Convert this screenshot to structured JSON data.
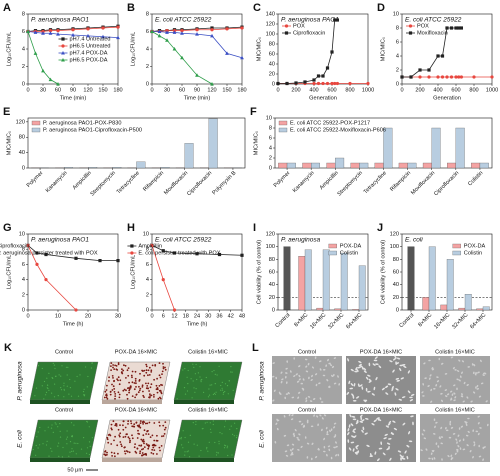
{
  "chart_data": [
    {
      "type": "line",
      "panel": "A",
      "title": "P. aeruginosa PAO1",
      "xlabel": "Time (min)",
      "ylabel": "Log₁₀CFU/mL",
      "x": [
        0,
        15,
        30,
        45,
        60,
        90,
        120,
        150,
        180
      ],
      "xlim": [
        0,
        180
      ],
      "xticks": [
        0,
        30,
        60,
        90,
        120,
        150,
        180
      ],
      "ylim": [
        0,
        8
      ],
      "yticks": [
        0,
        2,
        4,
        6,
        8
      ],
      "legend": "center right",
      "series": [
        {
          "name": "pH7.4 Untreated",
          "color": "#222222",
          "marker": "square",
          "values": [
            6,
            6.1,
            6.1,
            6.2,
            6.2,
            6.3,
            6.4,
            6.5,
            6.6
          ]
        },
        {
          "name": "pH6.5 Untreated",
          "color": "#e8473f",
          "marker": "circle",
          "values": [
            6,
            6,
            6,
            6.1,
            6.1,
            6.2,
            6.3,
            6.4,
            6.5
          ]
        },
        {
          "name": "pH7.4 POX-DA",
          "color": "#3b4fc4",
          "marker": "triangle",
          "values": [
            6,
            5.9,
            5.8,
            5.8,
            5.7,
            5.6,
            5.5,
            5.4,
            5.3
          ]
        },
        {
          "name": "pH6.5 POX-DA",
          "color": "#2e9e4a",
          "marker": "triangle",
          "values": [
            6,
            3.5,
            1.5,
            0.5,
            0,
            null,
            null,
            null,
            null
          ]
        }
      ]
    },
    {
      "type": "line",
      "panel": "B",
      "title": "E. coli ATCC 25922",
      "xlabel": "Time (min)",
      "ylabel": "Log₁₀CFU/mL",
      "x": [
        0,
        15,
        30,
        45,
        60,
        90,
        120,
        150,
        180
      ],
      "xlim": [
        0,
        180
      ],
      "xticks": [
        0,
        30,
        60,
        90,
        120,
        150,
        180
      ],
      "ylim": [
        0,
        8
      ],
      "yticks": [
        0,
        2,
        4,
        6,
        8
      ],
      "series": [
        {
          "color": "#222222",
          "marker": "square",
          "values": [
            6,
            6.1,
            6.1,
            6.2,
            6.2,
            6.3,
            6.4,
            6.4,
            6.5
          ]
        },
        {
          "color": "#e8473f",
          "marker": "circle",
          "values": [
            6,
            6,
            6.1,
            6.1,
            6.1,
            6.2,
            6.2,
            6.3,
            6.4
          ]
        },
        {
          "color": "#3b4fc4",
          "marker": "triangle",
          "values": [
            6,
            6,
            5.9,
            5.9,
            5.8,
            5.7,
            5.5,
            3.5,
            3
          ]
        },
        {
          "color": "#2e9e4a",
          "marker": "triangle",
          "values": [
            6,
            5.5,
            5,
            4,
            3,
            1,
            0,
            null,
            null
          ]
        }
      ]
    },
    {
      "type": "line",
      "panel": "C",
      "title": "P. aeruginosa PAO1",
      "xlabel": "Generation",
      "ylabel": "MIC/MIC₀",
      "x": [
        0,
        100,
        200,
        300,
        400,
        450,
        500,
        550,
        600,
        630,
        660,
        800,
        1000
      ],
      "xlim": [
        0,
        1000
      ],
      "xticks": [
        0,
        200,
        400,
        600,
        800,
        1000
      ],
      "ylim": [
        0,
        140
      ],
      "yticks": [
        0,
        20,
        40,
        60,
        80,
        100,
        120,
        140
      ],
      "legend": "upper left",
      "series": [
        {
          "name": "POX",
          "color": "#e8473f",
          "marker": "circle",
          "values": [
            1,
            1,
            1,
            1,
            1,
            1,
            1,
            1,
            1,
            1,
            1,
            1,
            1
          ]
        },
        {
          "name": "Ciprofloxacin",
          "color": "#222222",
          "marker": "square",
          "values": [
            1,
            1,
            2,
            4,
            8,
            16,
            16,
            32,
            64,
            128,
            128,
            null,
            null
          ]
        }
      ]
    },
    {
      "type": "line",
      "panel": "D",
      "title": "E. coli ATCC 25922",
      "xlabel": "Generation",
      "ylabel": "MIC/MIC₀",
      "x": [
        0,
        100,
        200,
        300,
        400,
        450,
        500,
        550,
        600,
        630,
        660,
        800,
        1000
      ],
      "xlim": [
        0,
        1000
      ],
      "xticks": [
        0,
        200,
        400,
        600,
        800,
        1000
      ],
      "ylim": [
        0,
        10
      ],
      "yticks": [
        0,
        2,
        4,
        6,
        8,
        10
      ],
      "legend": "upper left",
      "series": [
        {
          "name": "POX",
          "color": "#e8473f",
          "marker": "circle",
          "values": [
            1,
            1,
            1,
            1,
            1,
            1,
            1,
            1,
            1,
            1,
            1,
            1,
            1
          ]
        },
        {
          "name": "Moxifloxacin",
          "color": "#222222",
          "marker": "square",
          "values": [
            1,
            1,
            2,
            2,
            4,
            4,
            8,
            8,
            8,
            8,
            8,
            null,
            null
          ]
        }
      ]
    },
    {
      "type": "bar",
      "panel": "E",
      "ylabel": "MIC/MIC₀",
      "categories": [
        "Polymer",
        "Kanamycin",
        "Ampicillin",
        "Streptomycin",
        "Tetracycline",
        "Rifampicin",
        "Moxifloxacin",
        "Ciprofloxacin",
        "Polymyxin B"
      ],
      "ylim": [
        0,
        130
      ],
      "yticks": [
        0,
        40,
        80,
        120
      ],
      "legend": "upper left",
      "series": [
        {
          "name": "P. aeruginosa PAO1-POX-P830",
          "color": "#f4a3a3",
          "values": [
            1,
            1,
            1,
            1,
            1,
            1,
            1,
            1,
            1
          ]
        },
        {
          "name": "P. aeruginosa PAO1-Ciprofloxacin-P500",
          "color": "#b8cde0",
          "values": [
            1,
            2,
            2,
            2,
            16,
            2,
            64,
            128,
            1
          ]
        }
      ]
    },
    {
      "type": "bar",
      "panel": "F",
      "ylabel": "MIC/MIC₀",
      "categories": [
        "Polymer",
        "Kanamycin",
        "Ampicillin",
        "Streptomycin",
        "Tetracycline",
        "Rifampicin",
        "Moxifloxacin",
        "Ciprofloxacin",
        "Colistin"
      ],
      "ylim": [
        0,
        10
      ],
      "yticks": [
        0,
        2,
        4,
        6,
        8,
        10
      ],
      "legend": "upper left",
      "series": [
        {
          "name": "E. coli ATCC 25922-POX-P1217",
          "color": "#f4a3a3",
          "values": [
            1,
            1,
            1,
            1,
            1,
            1,
            1,
            1,
            1
          ]
        },
        {
          "name": "E. coli ATCC 25922-Moxifloxacin-P606",
          "color": "#b8cde0",
          "values": [
            1,
            1,
            2,
            1,
            8,
            1,
            8,
            8,
            1
          ]
        }
      ]
    },
    {
      "type": "line",
      "panel": "G",
      "title": "P. aeruginosa PAO1",
      "xlabel": "Time (h)",
      "ylabel": "Log₁₀CFU/mL",
      "x": [
        0,
        3,
        6,
        16,
        24,
        30
      ],
      "xlim": [
        0,
        30
      ],
      "xticks": [
        0,
        10,
        20,
        30
      ],
      "ylim": [
        0,
        10
      ],
      "yticks": [
        0,
        2,
        4,
        6,
        8,
        10
      ],
      "legend": "upper right",
      "series": [
        {
          "name": "Ciprofloxacin",
          "color": "#222222",
          "marker": "square",
          "values": [
            8.5,
            7.5,
            7.3,
            6.8,
            6.5,
            6.5
          ]
        },
        {
          "name": "P. aeruginosa persister treated with POX",
          "color": "#e8473f",
          "marker": "circle",
          "values": [
            8.5,
            6,
            4,
            0,
            null,
            null
          ]
        }
      ]
    },
    {
      "type": "line",
      "panel": "H",
      "title": "E. coli ATCC 25922",
      "xlabel": "Time (h)",
      "ylabel": "Log₁₀CFU/mL",
      "x": [
        0,
        6,
        12,
        24,
        36,
        48
      ],
      "xlim": [
        0,
        48
      ],
      "xticks": [
        0,
        6,
        12,
        18,
        24,
        30,
        36,
        42,
        48
      ],
      "ylim": [
        0,
        10
      ],
      "yticks": [
        0,
        2,
        4,
        6,
        8,
        10
      ],
      "legend": "upper right",
      "series": [
        {
          "name": "Ampicillin",
          "color": "#222222",
          "marker": "square",
          "values": [
            8.5,
            7.8,
            7.5,
            7.4,
            7.3,
            7.2
          ]
        },
        {
          "name": "E. coli persister treated with POX",
          "color": "#e8473f",
          "marker": "circle",
          "values": [
            8.5,
            4,
            0,
            null,
            null,
            null
          ]
        }
      ]
    },
    {
      "type": "bar",
      "panel": "I",
      "title": "P. aeruginosa",
      "ylabel": "Cell viability (% of control)",
      "categories": [
        "Control",
        "8×MIC",
        "16×MIC",
        "32×MIC",
        "64×MIC"
      ],
      "ylim": [
        0,
        120
      ],
      "yticks": [
        0,
        20,
        40,
        60,
        80,
        100,
        120
      ],
      "control_value": 100,
      "control_color": "#555555",
      "threshold": 20,
      "legend": "upper right",
      "series": [
        {
          "name": "POX-DA",
          "color": "#f4a3a3",
          "values": [
            null,
            85,
            3,
            2,
            1
          ]
        },
        {
          "name": "Colistin",
          "color": "#b8cde0",
          "values": [
            null,
            95,
            95,
            90,
            70
          ]
        }
      ]
    },
    {
      "type": "bar",
      "panel": "J",
      "title": "E. coli",
      "ylabel": "Cell viability (% of control)",
      "categories": [
        "Control",
        "8×MIC",
        "16×MIC",
        "32×MIC",
        "64×MIC"
      ],
      "ylim": [
        0,
        120
      ],
      "yticks": [
        0,
        20,
        40,
        60,
        80,
        100,
        120
      ],
      "control_value": 100,
      "control_color": "#555555",
      "threshold": 20,
      "legend": "upper right",
      "series": [
        {
          "name": "POX-DA",
          "color": "#f4a3a3",
          "values": [
            null,
            20,
            8,
            3,
            2
          ]
        },
        {
          "name": "Colistin",
          "color": "#b8cde0",
          "values": [
            null,
            100,
            80,
            25,
            5
          ]
        }
      ]
    }
  ],
  "images": [
    {
      "panel": "K",
      "columns": [
        "Control",
        "POX-DA 16×MIC",
        "Colistin 16×MIC"
      ],
      "rows": [
        "P. aeruginosa",
        "E. coli"
      ],
      "scale": "50 μm"
    },
    {
      "panel": "L",
      "columns": [
        "Control",
        "POX-DA 16×MIC",
        "Colistin 16×MIC"
      ],
      "rows": [
        "P. aeruginosa",
        "E. coli"
      ]
    }
  ]
}
